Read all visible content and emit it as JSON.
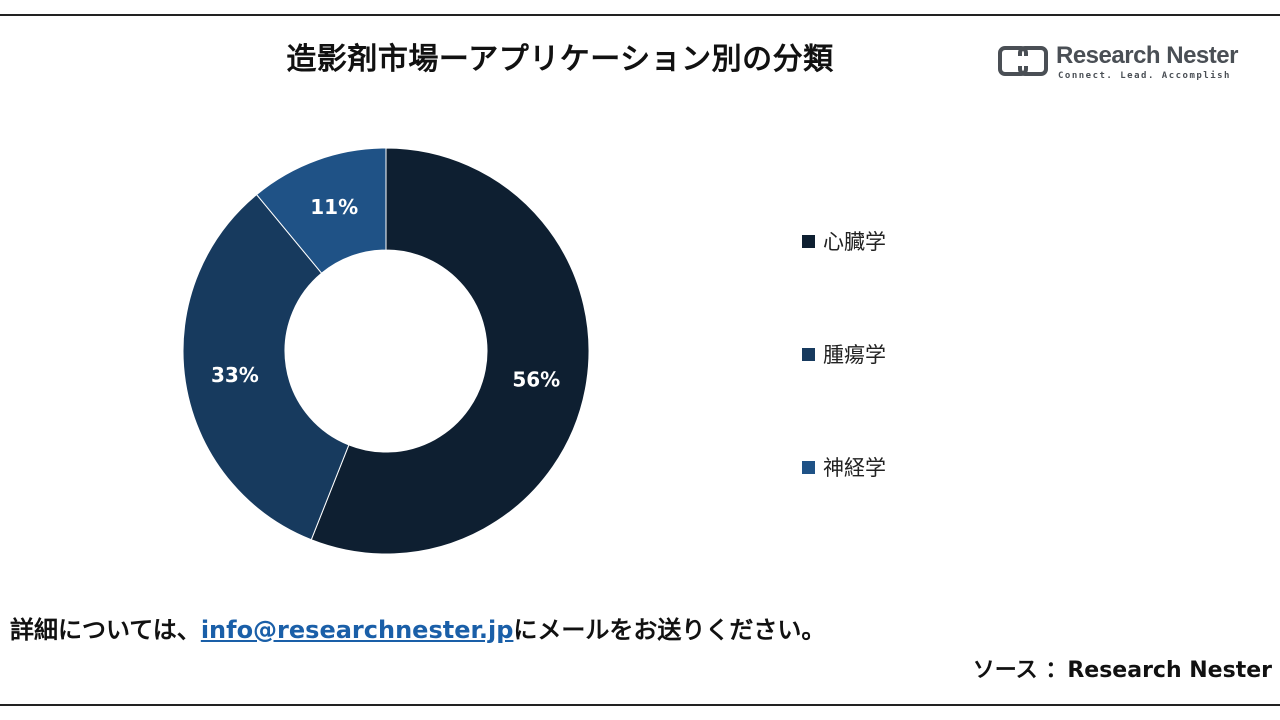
{
  "title": "造影剤市場ーアプリケーション別の分類",
  "logo": {
    "name": "Research Nester",
    "tagline": "Connect. Lead. Accomplish",
    "color": "#4a4f55"
  },
  "chart_data": {
    "type": "pie",
    "style": "donut",
    "title": "造影剤市場ーアプリケーション別の分類",
    "series": [
      {
        "name": "心臓学",
        "value": 56,
        "label": "56%",
        "color": "#0e1f31"
      },
      {
        "name": "腫瘍学",
        "value": 33,
        "label": "33%",
        "color": "#173a5e"
      },
      {
        "name": "神経学",
        "value": 11,
        "label": "11%",
        "color": "#1f5286"
      }
    ],
    "start_angle": "12 o'clock",
    "direction": "clockwise",
    "legend_position": "right"
  },
  "footer": {
    "contact_prefix": "詳細については、",
    "contact_email": "info@researchnester.jp",
    "contact_suffix": "にメールをお送りください。",
    "source": "ソース ：Research Nester"
  }
}
